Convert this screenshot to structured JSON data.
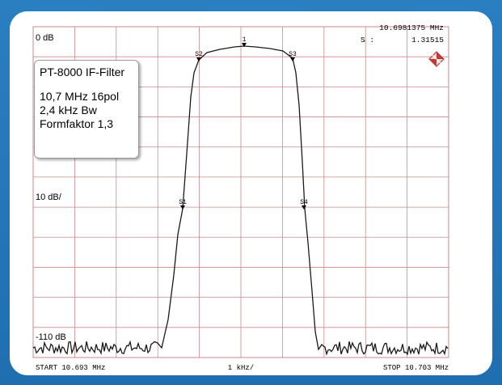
{
  "window": {
    "frame_color": "#1f6fb0",
    "trace_color": "#1a1a1a",
    "grid_color": "#c98a8a"
  },
  "header": {
    "marker_freq": "10.6981375 MHz",
    "shape_factor_label": "S :",
    "shape_factor_value": "1.31515"
  },
  "axes": {
    "ref_level": "0 dB",
    "scale": "10 dB/",
    "bottom_level": "-110 dB",
    "start": "START  10.693 MHz",
    "span": "1 kHz/",
    "stop": "STOP 10.703 MHz"
  },
  "markers": {
    "m1": "1",
    "s1": "S1",
    "s2": "S2",
    "s3": "S3",
    "s4": "S4"
  },
  "infobox": {
    "title": "PT-8000 IF-Filter",
    "line1": "10,7 MHz 16pol",
    "line2": "2,4 kHz Bw",
    "line3": "Formfaktor 1,3"
  },
  "icons": {
    "logo": "rs-diamond-logo-icon"
  }
}
